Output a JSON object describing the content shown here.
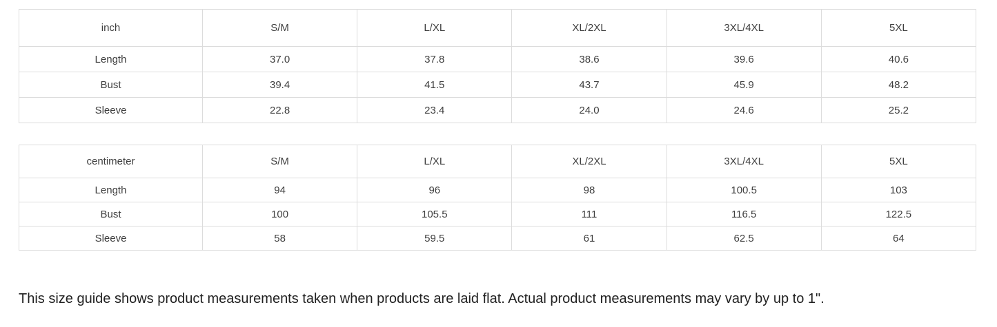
{
  "colors": {
    "background": "#ffffff",
    "table_border": "#dcdcdc",
    "table_text": "#3f3f3f",
    "note_text": "#212121"
  },
  "tables": [
    {
      "unit_label": "inch",
      "columns": [
        "S/M",
        "L/XL",
        "XL/2XL",
        "3XL/4XL",
        "5XL"
      ],
      "rows": [
        {
          "label": "Length",
          "values": [
            "37.0",
            "37.8",
            "38.6",
            "39.6",
            "40.6"
          ]
        },
        {
          "label": "Bust",
          "values": [
            "39.4",
            "41.5",
            "43.7",
            "45.9",
            "48.2"
          ]
        },
        {
          "label": "Sleeve",
          "values": [
            "22.8",
            "23.4",
            "24.0",
            "24.6",
            "25.2"
          ]
        }
      ]
    },
    {
      "unit_label": "centimeter",
      "columns": [
        "S/M",
        "L/XL",
        "XL/2XL",
        "3XL/4XL",
        "5XL"
      ],
      "rows": [
        {
          "label": "Length",
          "values": [
            "94",
            "96",
            "98",
            "100.5",
            "103"
          ]
        },
        {
          "label": "Bust",
          "values": [
            "100",
            "105.5",
            "111",
            "116.5",
            "122.5"
          ]
        },
        {
          "label": "Sleeve",
          "values": [
            "58",
            "59.5",
            "61",
            "62.5",
            "64"
          ]
        }
      ]
    }
  ],
  "note": "This size guide shows product measurements taken when products are laid flat. Actual product measurements may vary by up to 1\"."
}
